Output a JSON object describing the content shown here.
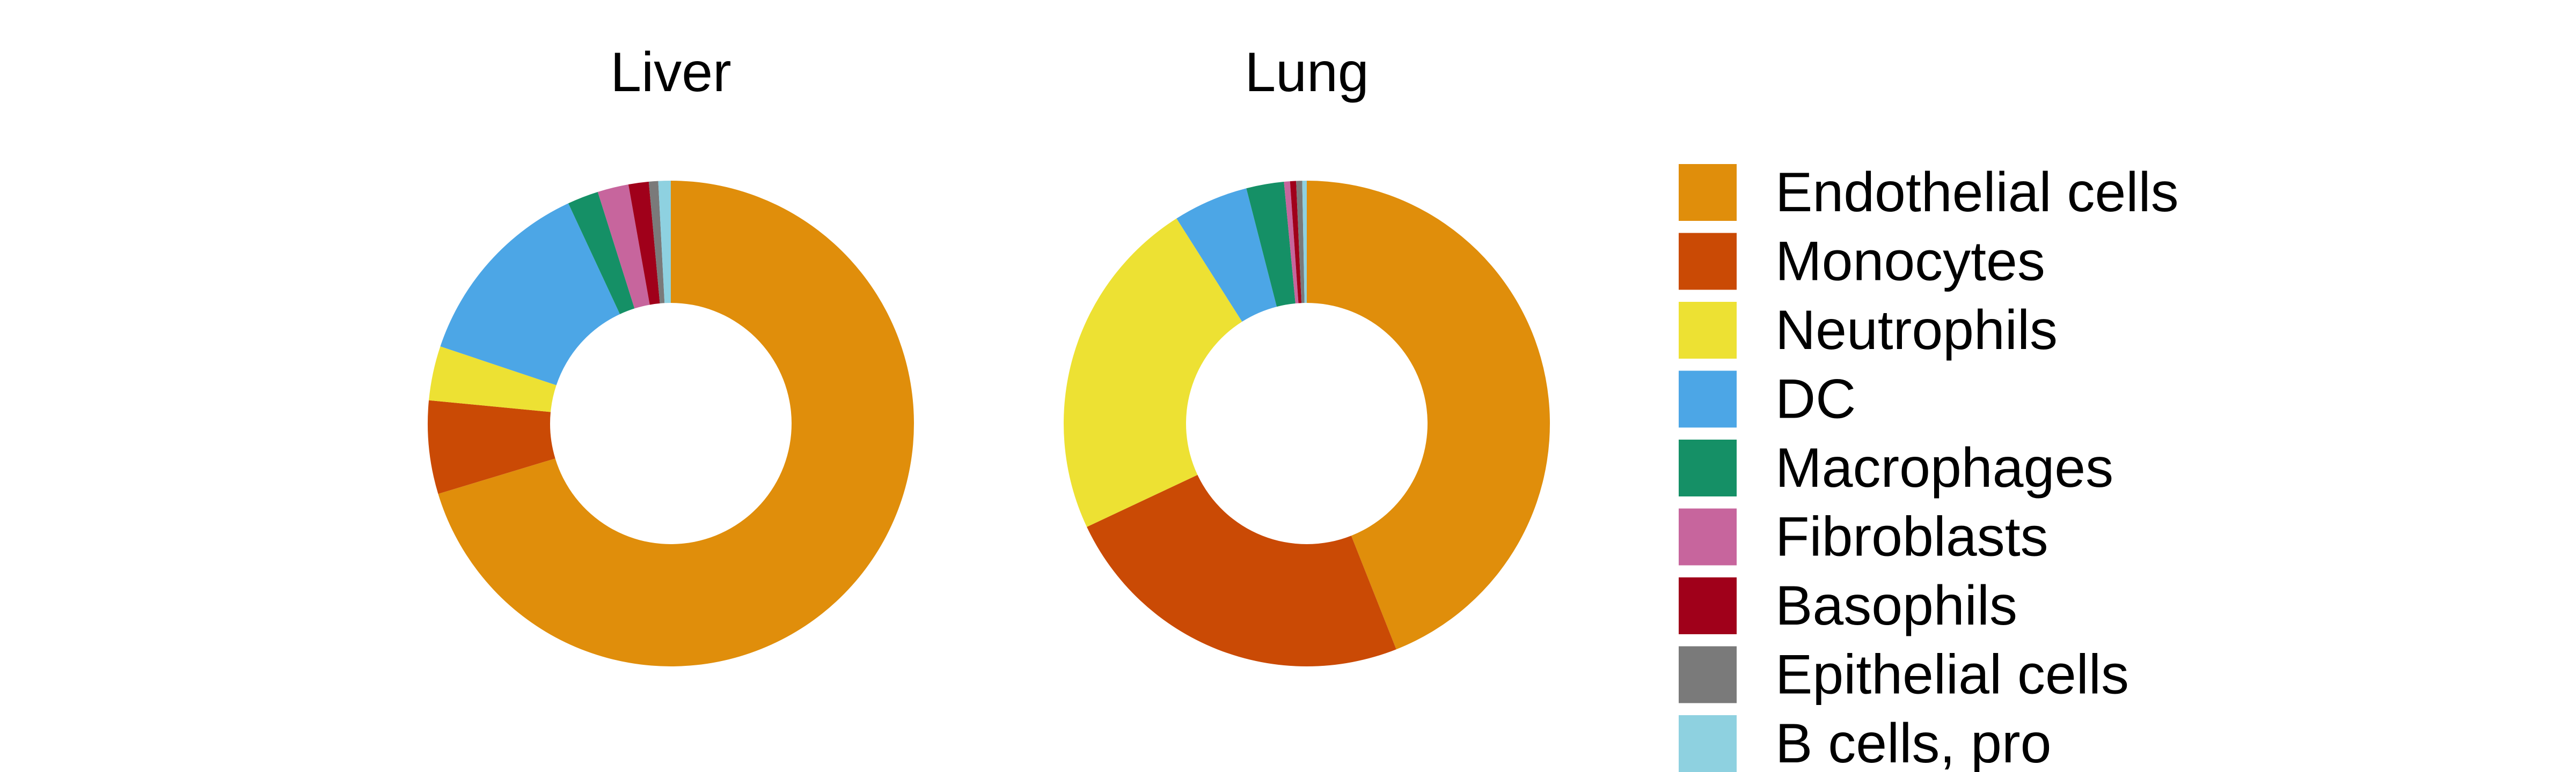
{
  "chart_data": {
    "type": "pie",
    "style": "donut",
    "categories": [
      "Endothelial cells",
      "Monocytes",
      "Neutrophils",
      "DC",
      "Macrophages",
      "Fibroblasts",
      "Basophils",
      "Epithelial cells",
      "B cells, pro"
    ],
    "colors": [
      "#E08E0B",
      "#CA4A05",
      "#EDE133",
      "#4CA6E6",
      "#159066",
      "#C7659D",
      "#A0001A",
      "#7A7A7A",
      "#8ED1E0"
    ],
    "legend_position": "right",
    "charts": [
      {
        "title": "Liver",
        "values": [
          68.0,
          6.0,
          3.5,
          12.5,
          2.0,
          2.0,
          1.3,
          0.6,
          0.8
        ]
      },
      {
        "title": "Lung",
        "values": [
          44.0,
          24.0,
          23.0,
          5.0,
          2.5,
          0.4,
          0.4,
          0.4,
          0.3
        ]
      }
    ]
  }
}
